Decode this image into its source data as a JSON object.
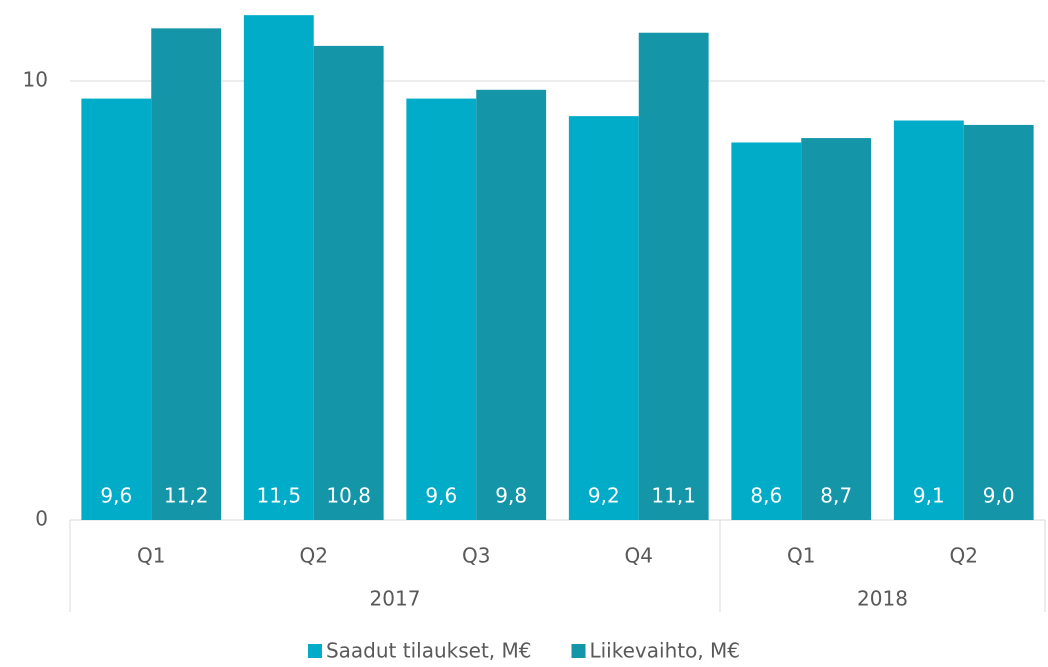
{
  "chart_data": {
    "type": "bar",
    "categories": [
      "Q1",
      "Q2",
      "Q3",
      "Q4",
      "Q1",
      "Q2"
    ],
    "category_groups": [
      "2017",
      "2017",
      "2017",
      "2017",
      "2018",
      "2018"
    ],
    "series": [
      {
        "name": "Saadut tilaukset, M€",
        "color": "#00acc8",
        "values": [
          9.6,
          11.5,
          9.6,
          9.2,
          8.6,
          9.1
        ],
        "value_labels": [
          "9,6",
          "11,5",
          "9,6",
          "9,2",
          "8,6",
          "9,1"
        ]
      },
      {
        "name": "Liikevaihto, M€",
        "color": "#1496a8",
        "values": [
          11.2,
          10.8,
          9.8,
          11.1,
          8.7,
          9.0
        ],
        "value_labels": [
          "11,2",
          "10,8",
          "9,8",
          "11,1",
          "8,7",
          "9,0"
        ]
      }
    ],
    "ylim": [
      0,
      11.8
    ],
    "yticks": [
      0,
      10
    ],
    "grid": true,
    "legend": "bottom"
  }
}
